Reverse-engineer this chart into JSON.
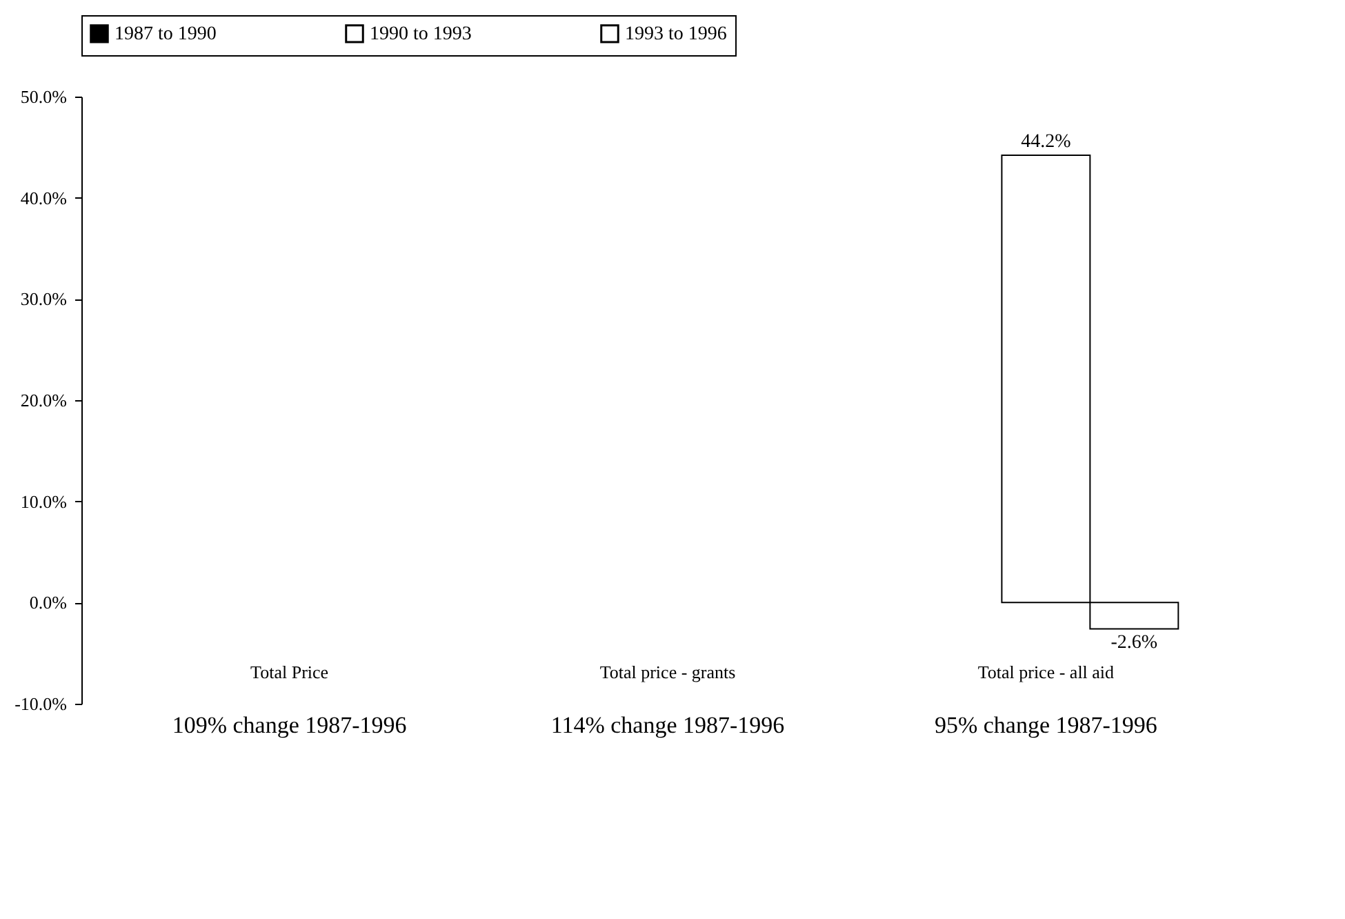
{
  "chart_data": {
    "type": "bar",
    "categories": [
      "Total Price",
      "Total price - grants",
      "Total price - all aid"
    ],
    "series": [
      {
        "name": "1987 to 1990",
        "color": "#000000",
        "values": [
          null,
          null,
          null
        ]
      },
      {
        "name": "1990 to 1993",
        "color": "#ffffff",
        "values": [
          null,
          null,
          44.2
        ],
        "value_labels": [
          null,
          null,
          "44.2%"
        ]
      },
      {
        "name": "1993 to 1996",
        "color": "#ffffff",
        "values": [
          null,
          null,
          -2.6
        ],
        "value_labels": [
          null,
          null,
          "-2.6%"
        ]
      }
    ],
    "ylim": [
      -10,
      50
    ],
    "yticks": [
      {
        "value": -10,
        "label": "-10.0%"
      },
      {
        "value": 0,
        "label": "0.0%"
      },
      {
        "value": 10,
        "label": "10.0%"
      },
      {
        "value": 20,
        "label": "20.0%"
      },
      {
        "value": 30,
        "label": "30.0%"
      },
      {
        "value": 40,
        "label": "40.0%"
      },
      {
        "value": 50,
        "label": "50.0%"
      }
    ],
    "grid": false,
    "legend": "top",
    "annotations": [
      "109% change 1987-1996",
      "114% change 1987-1996",
      "95% change 1987-1996"
    ]
  }
}
